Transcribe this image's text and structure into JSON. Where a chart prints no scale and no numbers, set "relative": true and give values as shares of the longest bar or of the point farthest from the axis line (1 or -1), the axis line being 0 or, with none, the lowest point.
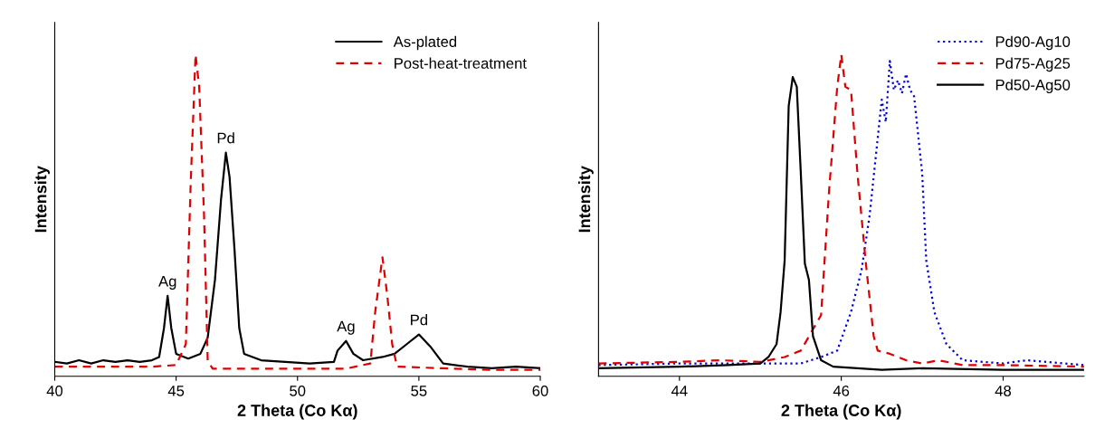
{
  "chart_data": [
    {
      "type": "line",
      "relative": true,
      "xlabel": "2 Theta (Co Kα)",
      "ylabel": "Intensity",
      "xlim": [
        40,
        60
      ],
      "xticks": [
        40,
        45,
        50,
        55,
        60
      ],
      "tick_labels": "x",
      "legend": "top right",
      "grid": false,
      "series": [
        {
          "name": "As-plated",
          "color": "#000000",
          "line_style": "solid",
          "x": [
            40,
            40.5,
            41,
            41.5,
            42,
            42.5,
            43,
            43.5,
            44,
            44.3,
            44.5,
            44.65,
            44.8,
            45.0,
            45.5,
            46.0,
            46.3,
            46.6,
            46.85,
            47.05,
            47.2,
            47.4,
            47.6,
            47.8,
            48.5,
            49.5,
            50.5,
            51.5,
            51.65,
            52.0,
            52.3,
            52.7,
            53.5,
            54.0,
            54.5,
            55.0,
            55.5,
            56.0,
            57,
            58,
            59,
            60
          ],
          "values": [
            0.045,
            0.04,
            0.05,
            0.04,
            0.05,
            0.045,
            0.05,
            0.045,
            0.05,
            0.06,
            0.15,
            0.25,
            0.15,
            0.07,
            0.055,
            0.07,
            0.12,
            0.3,
            0.55,
            0.695,
            0.62,
            0.4,
            0.15,
            0.07,
            0.05,
            0.045,
            0.04,
            0.045,
            0.08,
            0.11,
            0.07,
            0.05,
            0.06,
            0.07,
            0.1,
            0.13,
            0.09,
            0.04,
            0.03,
            0.025,
            0.03,
            0.025
          ]
        },
        {
          "name": "Post-heat-treatment",
          "color": "#e00000",
          "line_style": "dashed",
          "x": [
            40,
            42,
            44,
            45.0,
            45.4,
            45.6,
            45.8,
            45.95,
            46.15,
            46.3,
            46.5,
            48,
            50,
            52,
            53.0,
            53.2,
            53.5,
            53.7,
            53.9,
            54.1,
            56,
            58,
            60
          ],
          "values": [
            0.03,
            0.03,
            0.03,
            0.035,
            0.1,
            0.6,
            1.0,
            0.9,
            0.5,
            0.05,
            0.024,
            0.024,
            0.024,
            0.024,
            0.04,
            0.2,
            0.37,
            0.25,
            0.1,
            0.03,
            0.025,
            0.02,
            0.02
          ]
        }
      ],
      "annotations": [
        {
          "text": "Ag",
          "x": 44.65,
          "y": 0.25
        },
        {
          "text": "Pd",
          "x": 47.05,
          "y": 0.695
        },
        {
          "text": "Ag",
          "x": 52.0,
          "y": 0.11
        },
        {
          "text": "Pd",
          "x": 55.0,
          "y": 0.13
        }
      ]
    },
    {
      "type": "line",
      "relative": true,
      "xlabel": "2 Theta (Co Kα)",
      "ylabel": "Intensity",
      "xlim": [
        43,
        49
      ],
      "xticks": [
        44,
        46,
        48
      ],
      "tick_labels": "x",
      "legend": "top right",
      "grid": false,
      "series": [
        {
          "name": "Pd90-Ag10",
          "color": "#0000e0",
          "line_style": "dotted",
          "x": [
            43,
            44,
            45,
            45.5,
            45.75,
            45.95,
            46.05,
            46.12,
            46.25,
            46.35,
            46.45,
            46.5,
            46.55,
            46.6,
            46.65,
            46.7,
            46.75,
            46.8,
            46.85,
            46.9,
            47.0,
            47.05,
            47.15,
            47.3,
            47.5,
            48,
            48.3,
            49
          ],
          "values": [
            0.035,
            0.04,
            0.04,
            0.04,
            0.06,
            0.08,
            0.15,
            0.2,
            0.33,
            0.5,
            0.74,
            0.86,
            0.79,
            0.98,
            0.89,
            0.92,
            0.88,
            0.94,
            0.89,
            0.87,
            0.63,
            0.36,
            0.2,
            0.1,
            0.05,
            0.04,
            0.05,
            0.035
          ]
        },
        {
          "name": "Pd75-Ag25",
          "color": "#e00000",
          "line_style": "dashed",
          "x": [
            43,
            44,
            44.5,
            45,
            45.3,
            45.5,
            45.75,
            45.85,
            45.95,
            46.0,
            46.05,
            46.12,
            46.2,
            46.3,
            46.4,
            46.45,
            46.6,
            46.8,
            47,
            47.2,
            47.5,
            48,
            49
          ],
          "values": [
            0.04,
            0.045,
            0.05,
            0.045,
            0.06,
            0.08,
            0.19,
            0.58,
            0.9,
            1.0,
            0.9,
            0.89,
            0.63,
            0.36,
            0.125,
            0.08,
            0.07,
            0.05,
            0.04,
            0.05,
            0.035,
            0.035,
            0.03
          ]
        },
        {
          "name": "Pd50-Ag50",
          "color": "#000000",
          "line_style": "solid",
          "x": [
            43,
            44,
            44.6,
            45.0,
            45.1,
            45.2,
            45.25,
            45.3,
            45.35,
            45.4,
            45.45,
            45.5,
            45.55,
            45.6,
            45.65,
            45.75,
            45.9,
            46.5,
            47,
            48,
            49
          ],
          "values": [
            0.025,
            0.03,
            0.035,
            0.04,
            0.06,
            0.1,
            0.2,
            0.36,
            0.84,
            0.93,
            0.9,
            0.63,
            0.35,
            0.3,
            0.125,
            0.05,
            0.03,
            0.02,
            0.025,
            0.02,
            0.02
          ]
        }
      ]
    }
  ]
}
